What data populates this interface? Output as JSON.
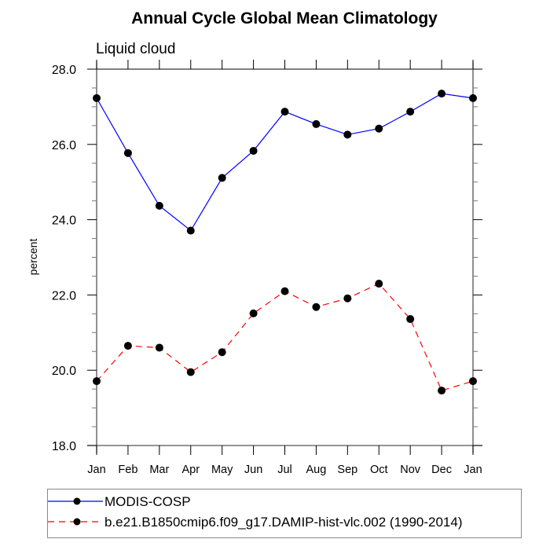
{
  "chart_data": {
    "type": "line",
    "title": "Annual Cycle Global Mean Climatology",
    "subtitle": "Liquid cloud",
    "xlabel": "",
    "ylabel": "percent",
    "categories": [
      "Jan",
      "Feb",
      "Mar",
      "Apr",
      "May",
      "Jun",
      "Jul",
      "Aug",
      "Sep",
      "Oct",
      "Nov",
      "Dec",
      "Jan"
    ],
    "ylim": [
      18.0,
      28.0
    ],
    "yticks": [
      "18.0",
      "20.0",
      "22.0",
      "24.0",
      "26.0",
      "28.0"
    ],
    "ytick_values": [
      18,
      20,
      22,
      24,
      26,
      28
    ],
    "yminor_step": 0.5,
    "grid": false,
    "legend_position": "bottom",
    "series": [
      {
        "name": "MODIS-COSP",
        "color": "#0000ff",
        "line_style": "solid",
        "marker": "filled-circle",
        "values": [
          27.23,
          25.77,
          24.37,
          23.71,
          25.11,
          25.83,
          26.87,
          26.54,
          26.26,
          26.42,
          26.87,
          27.35,
          27.23
        ]
      },
      {
        "name": "b.e21.B1850cmip6.f09_g17.DAMIP-hist-vlc.002 (1990-2014)",
        "color": "#ff0000",
        "line_style": "dashed",
        "marker": "filled-circle",
        "values": [
          19.71,
          20.65,
          20.6,
          19.95,
          20.48,
          21.51,
          22.1,
          21.68,
          21.91,
          22.3,
          21.36,
          19.46,
          19.71
        ]
      }
    ]
  }
}
